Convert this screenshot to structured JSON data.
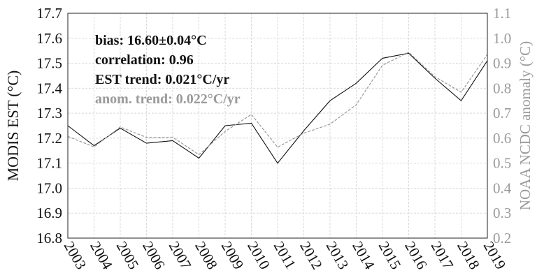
{
  "chart_data": {
    "type": "line",
    "x": [
      2003,
      2004,
      2005,
      2006,
      2007,
      2008,
      2009,
      2010,
      2011,
      2012,
      2013,
      2014,
      2015,
      2016,
      2017,
      2018,
      2019
    ],
    "x_tick_labels": [
      "2003",
      "2004",
      "2005",
      "2006",
      "2007",
      "2008",
      "2009",
      "2010",
      "2011",
      "2012",
      "2013",
      "2014",
      "2015",
      "2016",
      "2017",
      "2018",
      "2019"
    ],
    "series": [
      {
        "axis": "left",
        "color": "#111111",
        "style": "solid",
        "values": [
          17.25,
          17.17,
          17.24,
          17.18,
          17.19,
          17.12,
          17.25,
          17.26,
          17.1,
          17.23,
          17.35,
          17.42,
          17.52,
          17.54,
          17.44,
          17.35,
          17.51
        ]
      },
      {
        "axis": "right",
        "color": "#9a9a9a",
        "style": "dashed",
        "values": [
          0.607,
          0.565,
          0.645,
          0.603,
          0.604,
          0.534,
          0.627,
          0.695,
          0.564,
          0.62,
          0.656,
          0.734,
          0.892,
          0.944,
          0.846,
          0.784,
          0.935
        ]
      }
    ],
    "ylabel_left": "MODIS EST (°C)",
    "ylabel_right": "NOAA NCDC anomaly (°C)",
    "ylim_left": [
      16.8,
      17.7
    ],
    "ylim_right": [
      0.2,
      1.1
    ],
    "y_left_ticks": [
      "16.8",
      "16.9",
      "17.0",
      "17.1",
      "17.2",
      "17.3",
      "17.4",
      "17.5",
      "17.6",
      "17.7"
    ],
    "y_right_ticks": [
      "0.2",
      "0.3",
      "0.4",
      "0.5",
      "0.6",
      "0.7",
      "0.8",
      "0.9",
      "1.0",
      "1.1"
    ],
    "grid": true,
    "annotations": {
      "bias": "bias: 16.60±0.04°C",
      "correlation": "correlation: 0.96",
      "est_trend": "EST trend: 0.021°C/yr",
      "anom_trend": "anom. trend: 0.022°C/yr"
    }
  }
}
